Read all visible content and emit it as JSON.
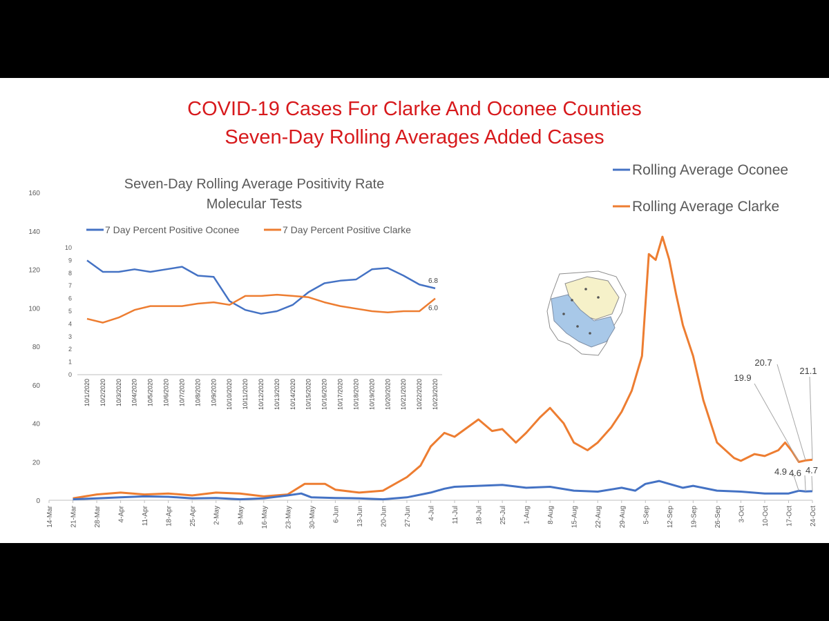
{
  "page": {
    "title_line1": "COVID-19 Cases For Clarke And Oconee Counties",
    "title_line2": "Seven-Day Rolling Averages Added Cases",
    "title_color": "#d7191c",
    "background": "#ffffff",
    "letterbox": "#000000"
  },
  "map_icon": "county-map-icon",
  "chart_data": [
    {
      "type": "line",
      "title": "",
      "xlabel": "",
      "ylabel": "",
      "ylim": [
        0,
        160
      ],
      "yticks": [
        0,
        20,
        40,
        60,
        80,
        100,
        120,
        140,
        160
      ],
      "x_start": "2020-03-14",
      "x_end": "2020-10-24",
      "xticks": [
        "14-Mar",
        "21-Mar",
        "28-Mar",
        "4-Apr",
        "11-Apr",
        "18-Apr",
        "25-Apr",
        "2-May",
        "9-May",
        "16-May",
        "23-May",
        "30-May",
        "6-Jun",
        "13-Jun",
        "20-Jun",
        "27-Jun",
        "4-Jul",
        "11-Jul",
        "18-Jul",
        "25-Jul",
        "1-Aug",
        "8-Aug",
        "15-Aug",
        "22-Aug",
        "29-Aug",
        "5-Sep",
        "12-Sep",
        "19-Sep",
        "26-Sep",
        "3-Oct",
        "10-Oct",
        "17-Oct",
        "24-Oct"
      ],
      "grid": false,
      "legend_position": "top-right",
      "series": [
        {
          "name": "Rolling Average Oconee",
          "color": "#4472c4",
          "points": [
            [
              "2020-03-21",
              0.5
            ],
            [
              "2020-03-28",
              1.0
            ],
            [
              "2020-04-04",
              1.5
            ],
            [
              "2020-04-11",
              2.0
            ],
            [
              "2020-04-18",
              1.8
            ],
            [
              "2020-04-25",
              1.0
            ],
            [
              "2020-05-02",
              1.2
            ],
            [
              "2020-05-09",
              0.5
            ],
            [
              "2020-05-16",
              1.0
            ],
            [
              "2020-05-23",
              2.5
            ],
            [
              "2020-05-27",
              3.5
            ],
            [
              "2020-05-30",
              1.5
            ],
            [
              "2020-06-06",
              1.2
            ],
            [
              "2020-06-13",
              1.0
            ],
            [
              "2020-06-20",
              0.5
            ],
            [
              "2020-06-27",
              1.5
            ],
            [
              "2020-07-04",
              4.0
            ],
            [
              "2020-07-08",
              6.0
            ],
            [
              "2020-07-11",
              7.0
            ],
            [
              "2020-07-18",
              7.5
            ],
            [
              "2020-07-25",
              8.0
            ],
            [
              "2020-08-01",
              6.5
            ],
            [
              "2020-08-08",
              7.0
            ],
            [
              "2020-08-15",
              5.0
            ],
            [
              "2020-08-22",
              4.5
            ],
            [
              "2020-08-29",
              6.5
            ],
            [
              "2020-09-02",
              5.0
            ],
            [
              "2020-09-05",
              8.5
            ],
            [
              "2020-09-09",
              10.0
            ],
            [
              "2020-09-12",
              8.5
            ],
            [
              "2020-09-16",
              6.5
            ],
            [
              "2020-09-19",
              7.5
            ],
            [
              "2020-09-26",
              5.0
            ],
            [
              "2020-10-03",
              4.5
            ],
            [
              "2020-10-10",
              3.5
            ],
            [
              "2020-10-17",
              3.5
            ],
            [
              "2020-10-20",
              4.9
            ],
            [
              "2020-10-22",
              4.6
            ],
            [
              "2020-10-24",
              4.7
            ]
          ],
          "end_labels": [
            "4.9",
            "4.6",
            "4.7"
          ]
        },
        {
          "name": "Rolling Average Clarke",
          "color": "#ed7d31",
          "points": [
            [
              "2020-03-21",
              1.0
            ],
            [
              "2020-03-28",
              3.0
            ],
            [
              "2020-04-04",
              4.0
            ],
            [
              "2020-04-11",
              3.0
            ],
            [
              "2020-04-18",
              3.5
            ],
            [
              "2020-04-25",
              2.5
            ],
            [
              "2020-05-02",
              4.0
            ],
            [
              "2020-05-09",
              3.5
            ],
            [
              "2020-05-16",
              2.0
            ],
            [
              "2020-05-23",
              3.0
            ],
            [
              "2020-05-28",
              8.5
            ],
            [
              "2020-06-03",
              8.5
            ],
            [
              "2020-06-06",
              5.5
            ],
            [
              "2020-06-13",
              4.0
            ],
            [
              "2020-06-20",
              5.0
            ],
            [
              "2020-06-27",
              12.0
            ],
            [
              "2020-07-01",
              18.0
            ],
            [
              "2020-07-04",
              28.0
            ],
            [
              "2020-07-08",
              35.0
            ],
            [
              "2020-07-11",
              33.0
            ],
            [
              "2020-07-18",
              42.0
            ],
            [
              "2020-07-22",
              36.0
            ],
            [
              "2020-07-25",
              37.0
            ],
            [
              "2020-07-29",
              30.0
            ],
            [
              "2020-08-01",
              35.0
            ],
            [
              "2020-08-05",
              43.0
            ],
            [
              "2020-08-08",
              48.0
            ],
            [
              "2020-08-12",
              40.0
            ],
            [
              "2020-08-15",
              30.0
            ],
            [
              "2020-08-19",
              26.0
            ],
            [
              "2020-08-22",
              30.0
            ],
            [
              "2020-08-26",
              38.0
            ],
            [
              "2020-08-29",
              46.0
            ],
            [
              "2020-09-01",
              57.0
            ],
            [
              "2020-09-04",
              75.0
            ],
            [
              "2020-09-06",
              128.0
            ],
            [
              "2020-09-08",
              125.0
            ],
            [
              "2020-09-10",
              137.0
            ],
            [
              "2020-09-12",
              125.0
            ],
            [
              "2020-09-14",
              107.0
            ],
            [
              "2020-09-16",
              91.0
            ],
            [
              "2020-09-19",
              75.0
            ],
            [
              "2020-09-22",
              52.0
            ],
            [
              "2020-09-26",
              30.0
            ],
            [
              "2020-10-01",
              22.0
            ],
            [
              "2020-10-03",
              20.5
            ],
            [
              "2020-10-07",
              24.0
            ],
            [
              "2020-10-10",
              23.0
            ],
            [
              "2020-10-14",
              26.0
            ],
            [
              "2020-10-16",
              30.0
            ],
            [
              "2020-10-18",
              25.5
            ],
            [
              "2020-10-20",
              19.9
            ],
            [
              "2020-10-22",
              20.7
            ],
            [
              "2020-10-24",
              21.1
            ]
          ],
          "end_labels": [
            "19.9",
            "20.7",
            "21.1"
          ]
        }
      ]
    },
    {
      "type": "line",
      "title": "Seven-Day Rolling Average Positivity Rate",
      "subtitle": "Molecular Tests",
      "xlabel": "",
      "ylabel": "",
      "ylim": [
        0,
        10
      ],
      "yticks": [
        0,
        1,
        2,
        3,
        4,
        5,
        6,
        7,
        8,
        9,
        10
      ],
      "categories": [
        "10/1/2020",
        "10/2/2020",
        "10/3/2020",
        "10/4/2020",
        "10/5/2020",
        "10/6/2020",
        "10/7/2020",
        "10/8/2020",
        "10/9/2020",
        "10/10/2020",
        "10/11/2020",
        "10/12/2020",
        "10/13/2020",
        "10/14/2020",
        "10/15/2020",
        "10/16/2020",
        "10/17/2020",
        "10/18/2020",
        "10/19/2020",
        "10/20/2020",
        "10/21/2020",
        "10/22/2020",
        "10/23/2020"
      ],
      "grid": false,
      "legend_position": "top",
      "series": [
        {
          "name": "7 Day Percent Positive Oconee",
          "color": "#4472c4",
          "values": [
            9.0,
            8.1,
            8.1,
            8.3,
            8.1,
            8.3,
            8.5,
            7.8,
            7.7,
            5.8,
            5.1,
            4.8,
            5.0,
            5.5,
            6.5,
            7.2,
            7.4,
            7.5,
            8.3,
            8.4,
            7.8,
            7.1,
            6.8
          ],
          "end_label": "6.8"
        },
        {
          "name": "7 Day Percent Positive Clarke",
          "color": "#ed7d31",
          "values": [
            4.4,
            4.1,
            4.5,
            5.1,
            5.4,
            5.4,
            5.4,
            5.6,
            5.7,
            5.5,
            6.2,
            6.2,
            6.3,
            6.2,
            6.1,
            5.7,
            5.4,
            5.2,
            5.0,
            4.9,
            5.0,
            5.0,
            6.0
          ],
          "end_label": "6.0"
        }
      ]
    }
  ]
}
